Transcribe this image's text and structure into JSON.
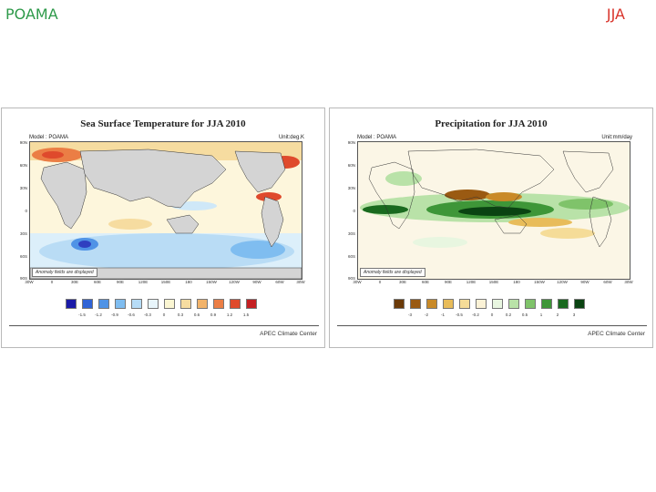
{
  "slide": {
    "left_title": "POAMA",
    "right_title": "JJA"
  },
  "panels": [
    {
      "id": "sst",
      "title": "Sea Surface Temperature for JJA 2010",
      "model_label": "Model : POAMA",
      "unit_label": "Unit:deg.K",
      "note": "Anomaly fields are displayed",
      "lat_labels": [
        "90N",
        "60N",
        "30N",
        "0",
        "30S",
        "60S",
        "90S"
      ],
      "lon_labels": [
        "30W",
        "0",
        "30E",
        "60E",
        "90E",
        "120E",
        "150E",
        "180",
        "150W",
        "120W",
        "90W",
        "60W",
        "30W"
      ],
      "colorbar_colors": [
        "#1a1aa8",
        "#2f63d6",
        "#4f93e6",
        "#7fbdf0",
        "#b6dcf7",
        "#e8f5fb",
        "#fbf6d2",
        "#f6dca0",
        "#f2b36a",
        "#eb7e45",
        "#df4a2c",
        "#c41f22"
      ],
      "colorbar_ticks": [
        "-1.5",
        "-1.2",
        "-0.9",
        "-0.6",
        "-0.3",
        "0",
        "0.3",
        "0.6",
        "0.9",
        "1.2",
        "1.5"
      ],
      "footer": "APEC Climate Center"
    },
    {
      "id": "precip",
      "title": "Precipitation for JJA 2010",
      "model_label": "Model : POAMA",
      "unit_label": "Unit:mm/day",
      "note": "Anomaly fields are displayed",
      "lat_labels": [
        "90N",
        "60N",
        "30N",
        "0",
        "30S",
        "60S",
        "90S"
      ],
      "lon_labels": [
        "30W",
        "0",
        "30E",
        "60E",
        "90E",
        "120E",
        "150E",
        "180",
        "150W",
        "120W",
        "90W",
        "60W",
        "30W"
      ],
      "colorbar_colors": [
        "#6b3a08",
        "#9a5a12",
        "#c98a28",
        "#e8bc5a",
        "#f5dc98",
        "#fbf2d6",
        "#e8f6e0",
        "#b9e2a8",
        "#7fc36a",
        "#3e9638",
        "#1a6a1f",
        "#0a4312"
      ],
      "colorbar_ticks": [
        "-3",
        "-2",
        "-1",
        "-0.5",
        "-0.2",
        "0",
        "0.2",
        "0.5",
        "1",
        "2",
        "3"
      ],
      "footer": "APEC Climate Center"
    }
  ]
}
